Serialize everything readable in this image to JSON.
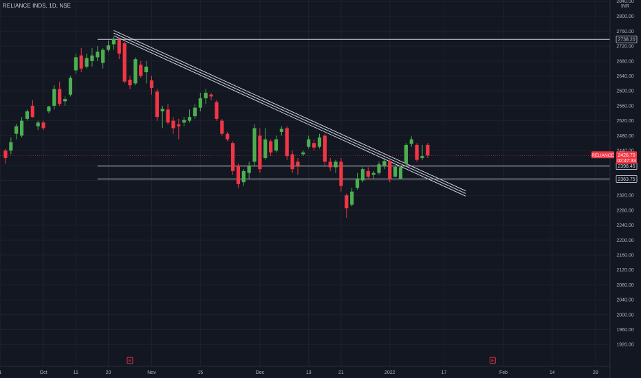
{
  "header": {
    "symbol_title": "RELIANCE INDS, 1D, NSE"
  },
  "colors": {
    "background": "#131722",
    "up": "#4caf50",
    "down": "#f23645",
    "grid": "#1e222d",
    "line": "#d1d4dc",
    "axis_text": "#b2b5be",
    "price_tag_bg": "#f23645"
  },
  "chart_data": {
    "type": "candlestick",
    "currency": "INR",
    "ylim": [
      1910,
      2840
    ],
    "yticks": [
      1920,
      1960,
      2000,
      2040,
      2080,
      2120,
      2160,
      2200,
      2240,
      2280,
      2320,
      2360,
      2400,
      2440,
      2480,
      2520,
      2560,
      2600,
      2640,
      2680,
      2720,
      2760,
      2800,
      2840
    ],
    "ytick_labels": [
      "1920.00",
      "1960.00",
      "2000.00",
      "2040.00",
      "2080.00",
      "2120.00",
      "2160.00",
      "2200.00",
      "2240.00",
      "2280.00",
      "2320.00",
      "2360.00",
      "2400.00",
      "2440.00",
      "2480.00",
      "2520.00",
      "2560.00",
      "2600.00",
      "2640.00",
      "2680.00",
      "2720.00",
      "2760.00",
      "2800.00",
      "2840.00"
    ],
    "xticks": [
      {
        "label": "1",
        "index": -1
      },
      {
        "label": "Oct",
        "index": 7
      },
      {
        "label": "11",
        "index": 13
      },
      {
        "label": "20",
        "index": 19
      },
      {
        "label": "Nov",
        "index": 27
      },
      {
        "label": "15",
        "index": 36
      },
      {
        "label": "Dec",
        "index": 47
      },
      {
        "label": "13",
        "index": 56
      },
      {
        "label": "21",
        "index": 62
      },
      {
        "label": "2022",
        "index": 71
      },
      {
        "label": "17",
        "index": 81
      },
      {
        "label": "Feb",
        "index": 92
      },
      {
        "label": "14",
        "index": 101
      },
      {
        "label": "28",
        "index": 109
      }
    ],
    "candles": [
      {
        "o": 2440,
        "h": 2445,
        "l": 2405,
        "c": 2420
      },
      {
        "o": 2440,
        "h": 2475,
        "l": 2430,
        "c": 2462
      },
      {
        "o": 2485,
        "h": 2512,
        "l": 2470,
        "c": 2505
      },
      {
        "o": 2480,
        "h": 2530,
        "l": 2475,
        "c": 2520
      },
      {
        "o": 2525,
        "h": 2550,
        "l": 2520,
        "c": 2545
      },
      {
        "o": 2560,
        "h": 2575,
        "l": 2528,
        "c": 2530
      },
      {
        "o": 2505,
        "h": 2520,
        "l": 2495,
        "c": 2515
      },
      {
        "o": 2515,
        "h": 2520,
        "l": 2495,
        "c": 2500
      },
      {
        "o": 2545,
        "h": 2560,
        "l": 2540,
        "c": 2558
      },
      {
        "o": 2560,
        "h": 2615,
        "l": 2550,
        "c": 2605
      },
      {
        "o": 2605,
        "h": 2625,
        "l": 2560,
        "c": 2565
      },
      {
        "o": 2572,
        "h": 2585,
        "l": 2560,
        "c": 2578
      },
      {
        "o": 2590,
        "h": 2640,
        "l": 2585,
        "c": 2635
      },
      {
        "o": 2655,
        "h": 2700,
        "l": 2645,
        "c": 2690
      },
      {
        "o": 2695,
        "h": 2715,
        "l": 2650,
        "c": 2660
      },
      {
        "o": 2665,
        "h": 2700,
        "l": 2660,
        "c": 2688
      },
      {
        "o": 2680,
        "h": 2715,
        "l": 2665,
        "c": 2695
      },
      {
        "o": 2690,
        "h": 2720,
        "l": 2680,
        "c": 2705
      },
      {
        "o": 2675,
        "h": 2715,
        "l": 2660,
        "c": 2710
      },
      {
        "o": 2710,
        "h": 2735,
        "l": 2705,
        "c": 2722
      },
      {
        "o": 2725,
        "h": 2745,
        "l": 2710,
        "c": 2740
      },
      {
        "o": 2738,
        "h": 2740,
        "l": 2685,
        "c": 2700
      },
      {
        "o": 2728,
        "h": 2732,
        "l": 2620,
        "c": 2625
      },
      {
        "o": 2630,
        "h": 2640,
        "l": 2605,
        "c": 2615
      },
      {
        "o": 2620,
        "h": 2690,
        "l": 2615,
        "c": 2685
      },
      {
        "o": 2670,
        "h": 2680,
        "l": 2635,
        "c": 2640
      },
      {
        "o": 2650,
        "h": 2680,
        "l": 2620,
        "c": 2665
      },
      {
        "o": 2628,
        "h": 2640,
        "l": 2590,
        "c": 2608
      },
      {
        "o": 2598,
        "h": 2605,
        "l": 2520,
        "c": 2530
      },
      {
        "o": 2545,
        "h": 2560,
        "l": 2500,
        "c": 2552
      },
      {
        "o": 2550,
        "h": 2565,
        "l": 2510,
        "c": 2515
      },
      {
        "o": 2520,
        "h": 2530,
        "l": 2485,
        "c": 2500
      },
      {
        "o": 2510,
        "h": 2525,
        "l": 2470,
        "c": 2505
      },
      {
        "o": 2515,
        "h": 2530,
        "l": 2505,
        "c": 2522
      },
      {
        "o": 2520,
        "h": 2550,
        "l": 2515,
        "c": 2530
      },
      {
        "o": 2532,
        "h": 2565,
        "l": 2525,
        "c": 2555
      },
      {
        "o": 2555,
        "h": 2595,
        "l": 2545,
        "c": 2580
      },
      {
        "o": 2580,
        "h": 2605,
        "l": 2565,
        "c": 2595
      },
      {
        "o": 2590,
        "h": 2595,
        "l": 2575,
        "c": 2585
      },
      {
        "o": 2570,
        "h": 2575,
        "l": 2520,
        "c": 2525
      },
      {
        "o": 2520,
        "h": 2525,
        "l": 2480,
        "c": 2485
      },
      {
        "o": 2485,
        "h": 2490,
        "l": 2465,
        "c": 2470
      },
      {
        "o": 2460,
        "h": 2465,
        "l": 2375,
        "c": 2385
      },
      {
        "o": 2400,
        "h": 2405,
        "l": 2340,
        "c": 2350
      },
      {
        "o": 2355,
        "h": 2390,
        "l": 2345,
        "c": 2385
      },
      {
        "o": 2380,
        "h": 2410,
        "l": 2365,
        "c": 2400
      },
      {
        "o": 2410,
        "h": 2510,
        "l": 2400,
        "c": 2500
      },
      {
        "o": 2480,
        "h": 2500,
        "l": 2380,
        "c": 2390
      },
      {
        "o": 2420,
        "h": 2500,
        "l": 2415,
        "c": 2470
      },
      {
        "o": 2465,
        "h": 2470,
        "l": 2425,
        "c": 2435
      },
      {
        "o": 2440,
        "h": 2480,
        "l": 2435,
        "c": 2470
      },
      {
        "o": 2490,
        "h": 2505,
        "l": 2480,
        "c": 2498
      },
      {
        "o": 2500,
        "h": 2505,
        "l": 2415,
        "c": 2425
      },
      {
        "o": 2430,
        "h": 2440,
        "l": 2380,
        "c": 2390
      },
      {
        "o": 2410,
        "h": 2420,
        "l": 2375,
        "c": 2400
      },
      {
        "o": 2430,
        "h": 2440,
        "l": 2425,
        "c": 2435
      },
      {
        "o": 2450,
        "h": 2480,
        "l": 2445,
        "c": 2470
      },
      {
        "o": 2460,
        "h": 2470,
        "l": 2440,
        "c": 2448
      },
      {
        "o": 2450,
        "h": 2485,
        "l": 2445,
        "c": 2475
      },
      {
        "o": 2480,
        "h": 2485,
        "l": 2400,
        "c": 2410
      },
      {
        "o": 2410,
        "h": 2420,
        "l": 2385,
        "c": 2395
      },
      {
        "o": 2395,
        "h": 2415,
        "l": 2380,
        "c": 2410
      },
      {
        "o": 2410,
        "h": 2420,
        "l": 2330,
        "c": 2345
      },
      {
        "o": 2320,
        "h": 2325,
        "l": 2260,
        "c": 2285
      },
      {
        "o": 2295,
        "h": 2340,
        "l": 2290,
        "c": 2330
      },
      {
        "o": 2340,
        "h": 2380,
        "l": 2335,
        "c": 2365
      },
      {
        "o": 2360,
        "h": 2395,
        "l": 2355,
        "c": 2390
      },
      {
        "o": 2385,
        "h": 2395,
        "l": 2365,
        "c": 2370
      },
      {
        "o": 2375,
        "h": 2385,
        "l": 2365,
        "c": 2380
      },
      {
        "o": 2380,
        "h": 2410,
        "l": 2375,
        "c": 2403
      },
      {
        "o": 2400,
        "h": 2420,
        "l": 2390,
        "c": 2412
      },
      {
        "o": 2412,
        "h": 2415,
        "l": 2355,
        "c": 2365
      },
      {
        "o": 2370,
        "h": 2400,
        "l": 2368,
        "c": 2396
      },
      {
        "o": 2365,
        "h": 2400,
        "l": 2362,
        "c": 2395
      },
      {
        "o": 2405,
        "h": 2460,
        "l": 2400,
        "c": 2455
      },
      {
        "o": 2458,
        "h": 2478,
        "l": 2450,
        "c": 2470
      },
      {
        "o": 2455,
        "h": 2460,
        "l": 2410,
        "c": 2415
      },
      {
        "o": 2420,
        "h": 2455,
        "l": 2415,
        "c": 2425
      },
      {
        "o": 2455,
        "h": 2460,
        "l": 2420,
        "c": 2426.7
      }
    ],
    "horizontal_levels": [
      {
        "value": 2738.2,
        "label": "2738.20"
      },
      {
        "value": 2398.45,
        "label": "2398.45"
      },
      {
        "value": 2363.75,
        "label": "2363.75"
      }
    ],
    "trendlines": [
      {
        "from_index": 20,
        "from_value": 2762,
        "to_index": 85,
        "to_value": 2332
      },
      {
        "from_index": 20,
        "from_value": 2755,
        "to_index": 85,
        "to_value": 2325
      },
      {
        "from_index": 20,
        "from_value": 2748,
        "to_index": 85,
        "to_value": 2318
      }
    ],
    "last_price": {
      "symbol": "RELIANCE",
      "price": "2426.70",
      "countdown": "02:47:33",
      "value": 2426.7
    },
    "events": [
      {
        "label": "E",
        "index": 23
      },
      {
        "label": "E",
        "index": 90
      }
    ]
  }
}
